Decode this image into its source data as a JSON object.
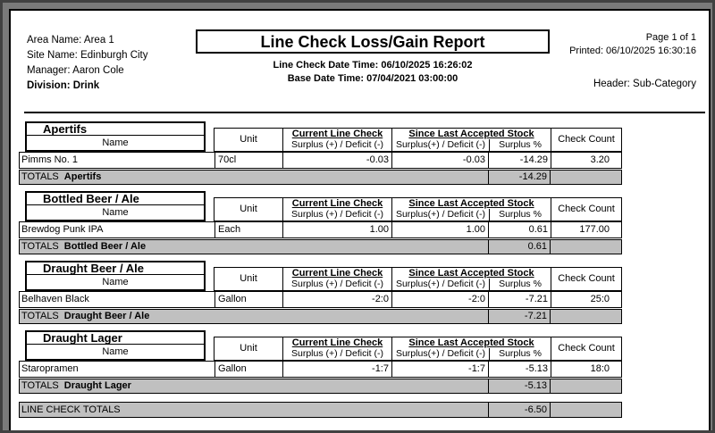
{
  "report": {
    "info": {
      "area": "Area Name: Area 1",
      "site": "Site Name: Edinburgh City",
      "manager": "Manager: Aaron Cole",
      "division": "Division: Drink"
    },
    "title": "Line Check Loss/Gain Report",
    "line_check_datetime": "Line Check Date Time: 06/10/2025 16:26:02",
    "base_datetime": "Base Date Time: 07/04/2021 03:00:00",
    "page_number": "Page 1 of 1",
    "printed": "Printed: 06/10/2025 16:30:16",
    "header_type": "Header: Sub-Category"
  },
  "labels": {
    "name": "Name",
    "unit": "Unit",
    "current_line_check": "Current Line Check",
    "surplus_deficit_current": "Surplus (+) / Deficit (-)",
    "since_last_accepted": "Since Last Accepted Stock",
    "surplus_deficit_since": "Surplus(+) / Deficit (-)",
    "surplus_pct": "Surplus %",
    "check_count": "Check Count",
    "totals": "TOTALS",
    "line_check_totals": "LINE CHECK TOTALS"
  },
  "sections": [
    {
      "category": "Apertifs",
      "rows": [
        {
          "name": "Pimms No. 1",
          "unit": "70cl",
          "current": "-0.03",
          "since": "-0.03",
          "surplus_pct": "-14.29",
          "check_count": "3.20"
        }
      ],
      "total_surplus_pct": "-14.29"
    },
    {
      "category": "Bottled Beer / Ale",
      "rows": [
        {
          "name": "Brewdog Punk IPA",
          "unit": "Each",
          "current": "1.00",
          "since": "1.00",
          "surplus_pct": "0.61",
          "check_count": "177.00"
        }
      ],
      "total_surplus_pct": "0.61"
    },
    {
      "category": "Draught Beer / Ale",
      "rows": [
        {
          "name": "Belhaven Black",
          "unit": "Gallon",
          "current": "-2:0",
          "since": "-2:0",
          "surplus_pct": "-7.21",
          "check_count": "25:0"
        }
      ],
      "total_surplus_pct": "-7.21"
    },
    {
      "category": "Draught Lager",
      "rows": [
        {
          "name": "Staropramen",
          "unit": "Gallon",
          "current": "-1:7",
          "since": "-1:7",
          "surplus_pct": "-5.13",
          "check_count": "18:0"
        }
      ],
      "total_surplus_pct": "-5.13"
    }
  ],
  "grand_total": {
    "surplus_pct": "-6.50"
  },
  "colors": {
    "totals_row_bg": "#c0c0c0",
    "window_bg": "#7a7a7a"
  }
}
